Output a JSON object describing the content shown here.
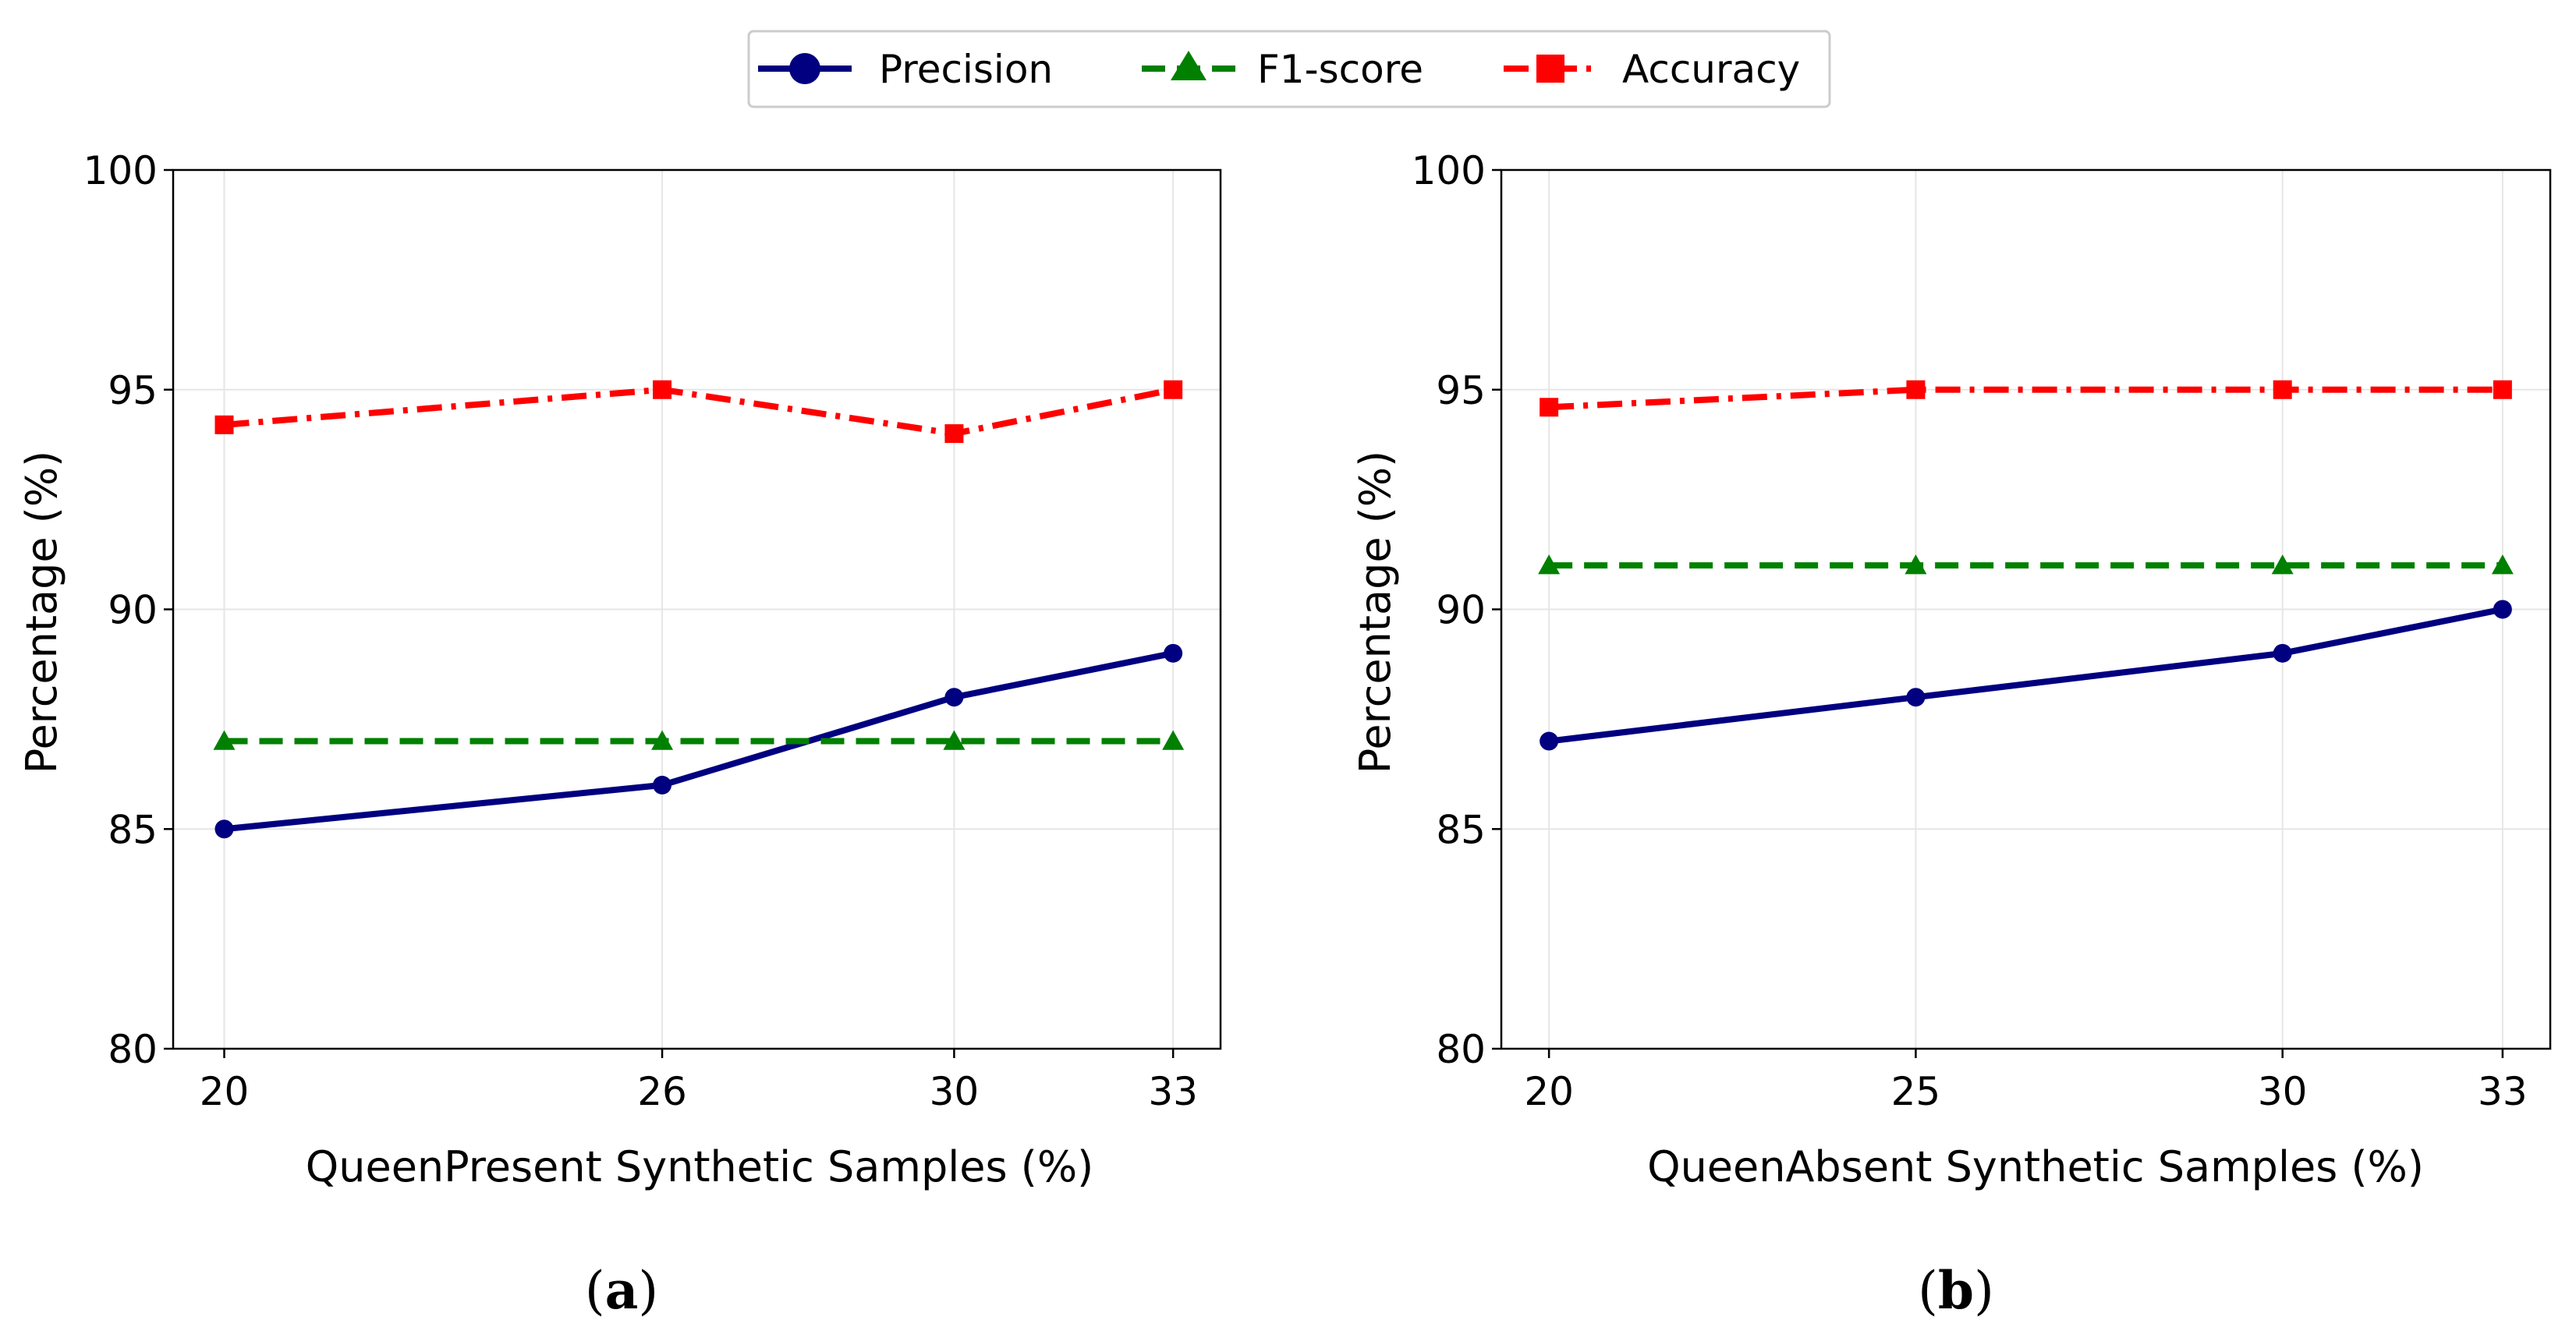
{
  "legend": {
    "entries": [
      {
        "name": "Precision",
        "color": "#000080",
        "marker": "circle",
        "line": "solid"
      },
      {
        "name": "F1-score",
        "color": "#008000",
        "marker": "triangle",
        "line": "dashed"
      },
      {
        "name": "Accuracy",
        "color": "#ff0000",
        "marker": "square",
        "line": "dashdot"
      }
    ]
  },
  "chart_data": [
    {
      "type": "line",
      "panel": "a",
      "caption_open": "(",
      "caption_letter": "a",
      "caption_close": ")",
      "xlabel": "QueenPresent Synthetic Samples (%)",
      "ylabel": "Percentage (%)",
      "x": [
        20,
        26,
        30,
        33
      ],
      "x_tick_labels": [
        "20",
        "26",
        "30",
        "33"
      ],
      "xlim": [
        19.3,
        33.65
      ],
      "ylim": [
        80,
        100
      ],
      "y_ticks": [
        80,
        85,
        90,
        95,
        100
      ],
      "y_tick_labels": [
        "80",
        "85",
        "90",
        "95",
        "100"
      ],
      "grid": true,
      "series": [
        {
          "name": "Precision",
          "values": [
            85,
            86,
            88,
            89
          ]
        },
        {
          "name": "F1-score",
          "values": [
            87,
            87,
            87,
            87
          ]
        },
        {
          "name": "Accuracy",
          "values": [
            94.2,
            95,
            94,
            95
          ]
        }
      ]
    },
    {
      "type": "line",
      "panel": "b",
      "caption_open": "(",
      "caption_letter": "b",
      "caption_close": ")",
      "xlabel": "QueenAbsent Synthetic Samples (%)",
      "ylabel": "Percentage (%)",
      "x": [
        20,
        25,
        30,
        33
      ],
      "x_tick_labels": [
        "20",
        "25",
        "30",
        "33"
      ],
      "xlim": [
        19.35,
        33.65
      ],
      "ylim": [
        80,
        100
      ],
      "y_ticks": [
        80,
        85,
        90,
        95,
        100
      ],
      "y_tick_labels": [
        "80",
        "85",
        "90",
        "95",
        "100"
      ],
      "grid": true,
      "series": [
        {
          "name": "Precision",
          "values": [
            87,
            88,
            89,
            90
          ]
        },
        {
          "name": "F1-score",
          "values": [
            91,
            91,
            91,
            91
          ]
        },
        {
          "name": "Accuracy",
          "values": [
            94.6,
            95,
            95,
            95
          ]
        }
      ]
    }
  ]
}
